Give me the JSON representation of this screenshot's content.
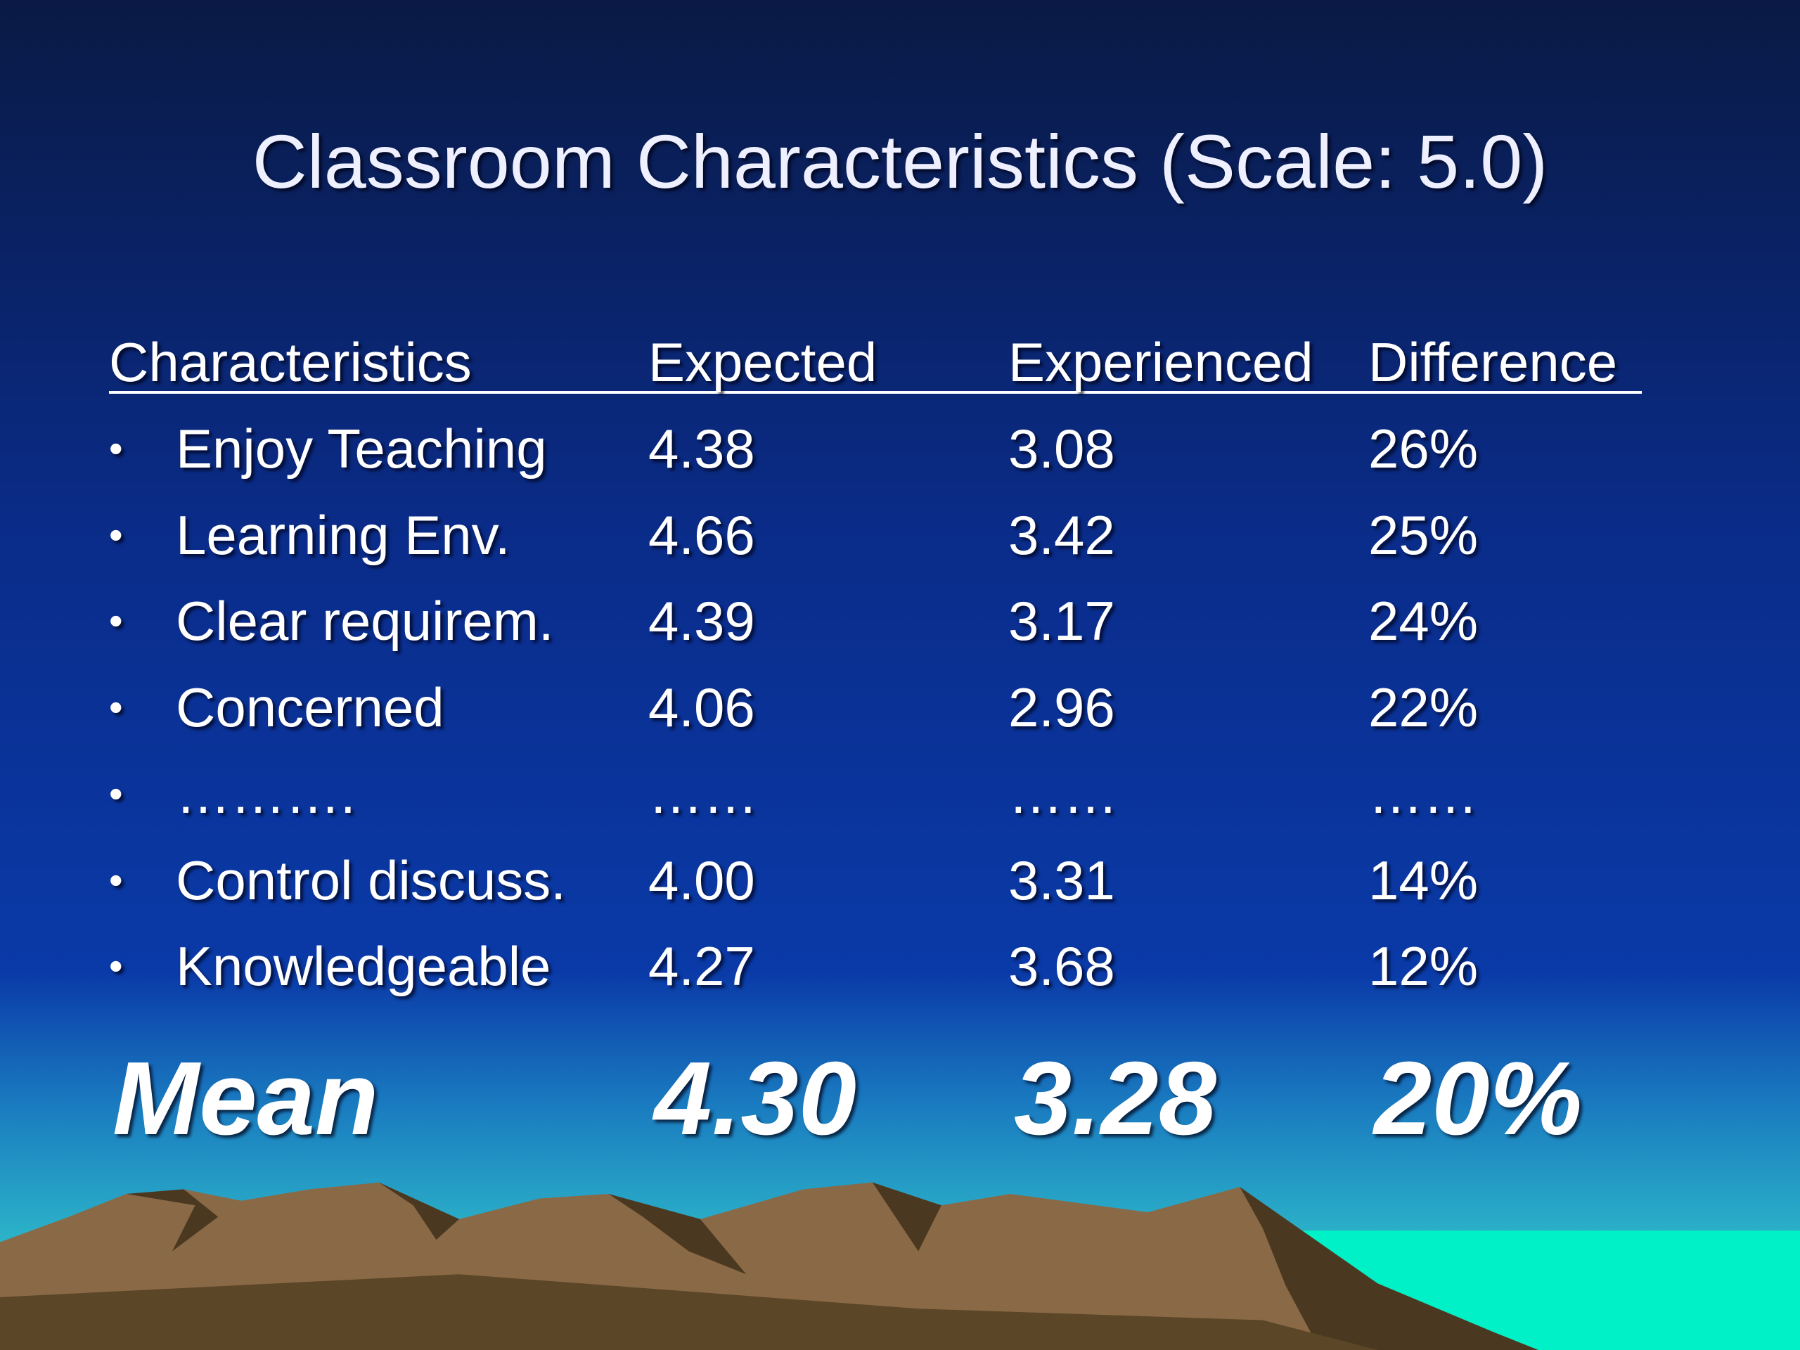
{
  "title": "Classroom Characteristics (Scale: 5.0)",
  "table": {
    "header": [
      "Characteristics",
      "Expected",
      "Experienced",
      "Difference"
    ],
    "rows": [
      [
        "Enjoy Teaching",
        "4.38",
        "3.08",
        "26%"
      ],
      [
        "Learning Env.",
        "4.66",
        "3.42",
        "25%"
      ],
      [
        "Clear requirem.",
        "4.39",
        "3.17",
        "24%"
      ],
      [
        "Concerned",
        "4.06",
        "2.96",
        "22%"
      ],
      [
        "……….",
        "……",
        "……",
        "……"
      ],
      [
        "Control discuss.",
        "4.00",
        "3.31",
        "14%"
      ],
      [
        "Knowledgeable",
        "4.27",
        "3.68",
        "12%"
      ]
    ],
    "mean": [
      "Mean",
      "4.30",
      "3.28",
      "20%"
    ]
  }
}
